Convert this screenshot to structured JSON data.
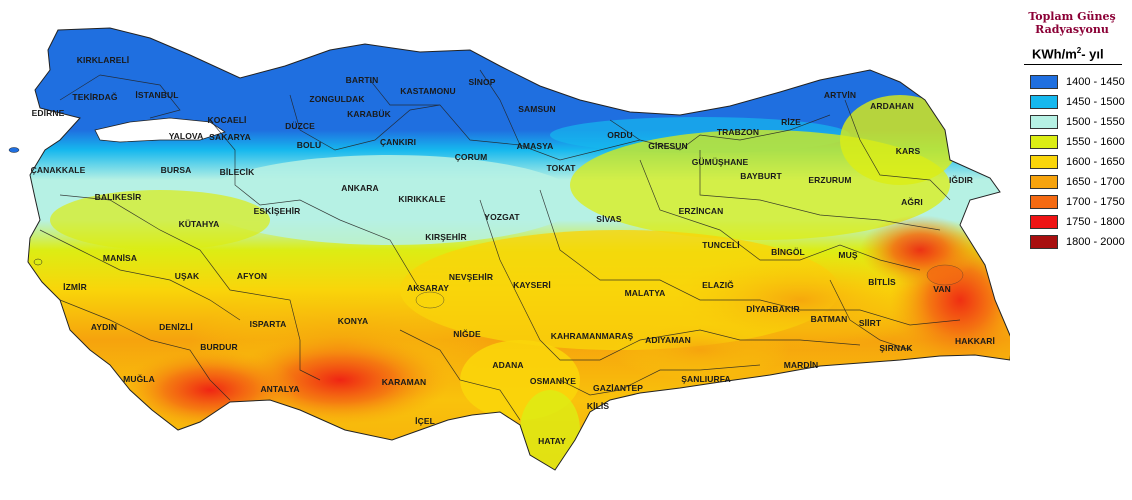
{
  "legend": {
    "title_line1": "Toplam Güneş",
    "title_line2": "Radyasyonu",
    "unit": "KWh/m",
    "unit_exp": "2",
    "unit_suffix": "- yıl",
    "classes": [
      {
        "label": "1400 - 1450",
        "color": "#1f6fe0"
      },
      {
        "label": "1450 - 1500",
        "color": "#16b8ee"
      },
      {
        "label": "1500 - 1550",
        "color": "#b6f1e4"
      },
      {
        "label": "1550 - 1600",
        "color": "#dced14"
      },
      {
        "label": "1600 - 1650",
        "color": "#f9d50a"
      },
      {
        "label": "1650 - 1700",
        "color": "#f6a30d"
      },
      {
        "label": "1700 - 1750",
        "color": "#f46a12"
      },
      {
        "label": "1750 - 1800",
        "color": "#ee1414"
      },
      {
        "label": "1800 - 2000",
        "color": "#a80f0f"
      }
    ]
  },
  "provinces": {
    "kirklareli": "KIRKLARELİ",
    "tekirdag": "TEKİRDAĞ",
    "istanbul": "İSTANBUL",
    "edirne": "EDİRNE",
    "kocaeli": "KOCAELİ",
    "yalova": "YALOVA",
    "sakarya": "SAKARYA",
    "duzce": "DÜZCE",
    "bolu": "BOLU",
    "zonguldak": "ZONGULDAK",
    "bartin": "BARTIN",
    "karabuk": "KARABÜK",
    "kastamonu": "KASTAMONU",
    "sinop": "SİNOP",
    "samsun": "SAMSUN",
    "canakkale": "ÇANAKKALE",
    "bursa": "BURSA",
    "bilecik": "BİLECİK",
    "cankiri": "ÇANKIRI",
    "corum": "ÇORUM",
    "amasya": "AMASYA",
    "tokat": "TOKAT",
    "ordu": "ORDU",
    "giresun": "GİRESUN",
    "trabzon": "TRABZON",
    "rize": "RİZE",
    "artvin": "ARTVİN",
    "ardahan": "ARDAHAN",
    "kars": "KARS",
    "igdir": "IĞDIR",
    "gumushane": "GÜMÜŞHANE",
    "bayburt": "BAYBURT",
    "erzurum": "ERZURUM",
    "agri": "AĞRI",
    "balikesir": "BALIKESİR",
    "eskisehir": "ESKİŞEHİR",
    "ankara": "ANKARA",
    "kirikkale": "KIRIKKALE",
    "yozgat": "YOZGAT",
    "sivas": "SİVAS",
    "erzincan": "ERZİNCAN",
    "kutahya": "KÜTAHYA",
    "kirsehir": "KIRŞEHİR",
    "tunceli": "TUNCELİ",
    "bingol": "BİNGÖL",
    "mus": "MUŞ",
    "manisa": "MANİSA",
    "usak": "UŞAK",
    "afyon": "AFYON",
    "nevsehir": "NEVŞEHİR",
    "kayseri": "KAYSERİ",
    "izmir": "İZMİR",
    "aksaray": "AKSARAY",
    "malatya": "MALATYA",
    "elazig": "ELAZIĞ",
    "bitlis": "BİTLİS",
    "van": "VAN",
    "aydin": "AYDIN",
    "denizli": "DENİZLİ",
    "isparta": "ISPARTA",
    "konya": "KONYA",
    "nigde": "NİĞDE",
    "kahramanmaras": "KAHRAMANMARAŞ",
    "diyarbakir": "DİYARBAKIR",
    "batman": "BATMAN",
    "siirt": "SİİRT",
    "burdur": "BURDUR",
    "adiyaman": "ADIYAMAN",
    "sirnak": "ŞIRNAK",
    "hakkari": "HAKKARİ",
    "adana": "ADANA",
    "karaman": "KARAMAN",
    "mugla": "MUĞLA",
    "osmaniye": "OSMANİYE",
    "sanliurfa": "ŞANLIURFA",
    "mardin": "MARDİN",
    "gaziantep": "GAZİANTEP",
    "antalya": "ANTALYA",
    "kilis": "KİLİS",
    "icel": "İÇEL",
    "hatay": "HATAY"
  }
}
